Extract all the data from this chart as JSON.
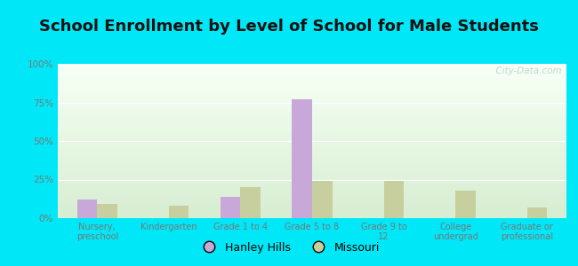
{
  "title": "School Enrollment by Level of School for Male Students",
  "categories": [
    "Nursery,\npreschool",
    "Kindergarten",
    "Grade 1 to 4",
    "Grade 5 to 8",
    "Grade 9 to\n12",
    "College\nundergrad",
    "Graduate or\nprofessional"
  ],
  "hanley_hills": [
    12,
    0,
    14,
    77,
    0,
    0,
    0
  ],
  "missouri": [
    9,
    8,
    20,
    24,
    24,
    18,
    7
  ],
  "bar_color_hanley": "#c8a8d8",
  "bar_color_missouri": "#c8cf9e",
  "legend_labels": [
    "Hanley Hills",
    "Missouri"
  ],
  "ylim": [
    0,
    100
  ],
  "yticks": [
    0,
    25,
    50,
    75,
    100
  ],
  "ytick_labels": [
    "0%",
    "25%",
    "50%",
    "75%",
    "100%"
  ],
  "background_outer": "#00e8f8",
  "title_fontsize": 13,
  "title_color": "#111111",
  "tick_color": "#777777",
  "watermark": "  City-Data.com",
  "watermark_color": "#b8cdd4"
}
